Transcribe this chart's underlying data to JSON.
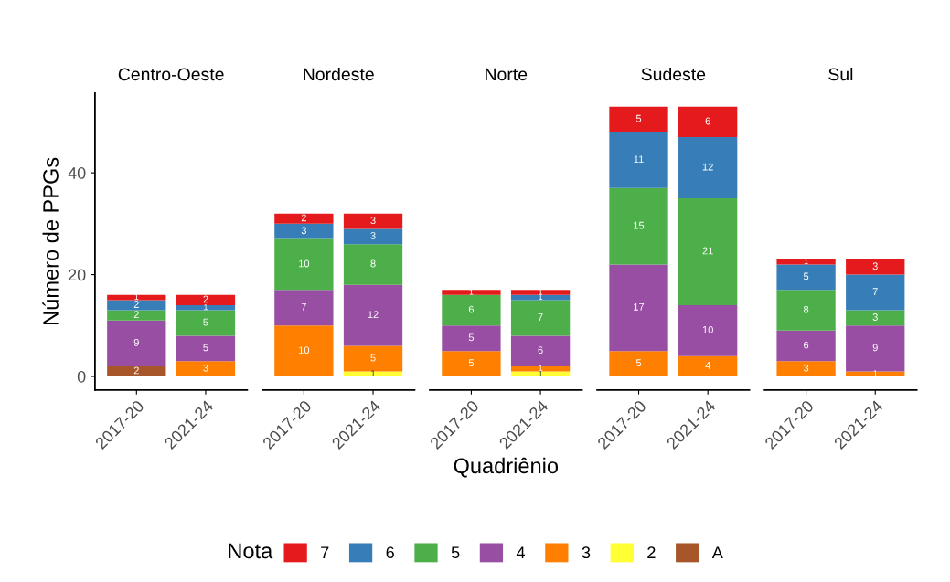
{
  "chart_data": [
    {
      "type": "bar",
      "stacked": true,
      "title": "Centro-Oeste",
      "ylabel": "Número de PPGs",
      "legend_title": "Nota",
      "legend": "bottom",
      "categories": [
        "2017-20",
        "2021-24"
      ],
      "ylim": [
        -2.65,
        55.65
      ],
      "yticks": [
        0,
        20,
        40
      ],
      "data_labels": true,
      "grid": false,
      "series": [
        {
          "name": "A",
          "color": "#a65628",
          "values": [
            2,
            null
          ]
        },
        {
          "name": "2",
          "color": "#ffff33",
          "values": [
            null,
            null
          ]
        },
        {
          "name": "3",
          "color": "#ff7f00",
          "values": [
            null,
            3
          ]
        },
        {
          "name": "4",
          "color": "#984ea3",
          "values": [
            9,
            5
          ]
        },
        {
          "name": "5",
          "color": "#4daf4a",
          "values": [
            2,
            5
          ]
        },
        {
          "name": "6",
          "color": "#377eb8",
          "values": [
            2,
            1
          ]
        },
        {
          "name": "7",
          "color": "#e41a1c",
          "values": [
            1,
            2
          ]
        }
      ]
    },
    {
      "type": "bar",
      "stacked": true,
      "title": "Nordeste",
      "categories": [
        "2017-20",
        "2021-24"
      ],
      "tick_labels": "x",
      "data_labels": true,
      "grid": false,
      "series": [
        {
          "color": "#a65628",
          "values": [
            null,
            null
          ]
        },
        {
          "color": "#ffff33",
          "values": [
            null,
            1
          ]
        },
        {
          "color": "#ff7f00",
          "values": [
            10,
            5
          ]
        },
        {
          "color": "#984ea3",
          "values": [
            7,
            12
          ]
        },
        {
          "color": "#4daf4a",
          "values": [
            10,
            8
          ]
        },
        {
          "color": "#377eb8",
          "values": [
            3,
            3
          ]
        },
        {
          "color": "#e41a1c",
          "values": [
            2,
            3
          ]
        }
      ]
    },
    {
      "type": "bar",
      "stacked": true,
      "title": "Norte",
      "xlabel": "Quadriênio",
      "categories": [
        "2017-20",
        "2021-24"
      ],
      "tick_labels": "x",
      "data_labels": true,
      "grid": false,
      "series": [
        {
          "color": "#a65628",
          "values": [
            null,
            null
          ]
        },
        {
          "color": "#ffff33",
          "values": [
            null,
            1
          ]
        },
        {
          "color": "#ff7f00",
          "values": [
            5,
            1
          ]
        },
        {
          "color": "#984ea3",
          "values": [
            5,
            6
          ]
        },
        {
          "color": "#4daf4a",
          "values": [
            6,
            7
          ]
        },
        {
          "color": "#377eb8",
          "values": [
            null,
            1
          ]
        },
        {
          "color": "#e41a1c",
          "values": [
            1,
            1
          ]
        }
      ]
    },
    {
      "type": "bar",
      "stacked": true,
      "title": "Sudeste",
      "categories": [
        "2017-20",
        "2021-24"
      ],
      "tick_labels": "x",
      "data_labels": true,
      "grid": false,
      "series": [
        {
          "color": "#a65628",
          "values": [
            null,
            null
          ]
        },
        {
          "color": "#ffff33",
          "values": [
            null,
            null
          ]
        },
        {
          "color": "#ff7f00",
          "values": [
            5,
            4
          ]
        },
        {
          "color": "#984ea3",
          "values": [
            17,
            10
          ]
        },
        {
          "color": "#4daf4a",
          "values": [
            15,
            21
          ]
        },
        {
          "color": "#377eb8",
          "values": [
            11,
            12
          ]
        },
        {
          "color": "#e41a1c",
          "values": [
            5,
            6
          ]
        }
      ]
    },
    {
      "type": "bar",
      "stacked": true,
      "title": "Sul",
      "categories": [
        "2017-20",
        "2021-24"
      ],
      "tick_labels": "x",
      "data_labels": true,
      "grid": false,
      "series": [
        {
          "color": "#a65628",
          "values": [
            null,
            null
          ]
        },
        {
          "color": "#ffff33",
          "values": [
            null,
            null
          ]
        },
        {
          "color": "#ff7f00",
          "values": [
            3,
            1
          ]
        },
        {
          "color": "#984ea3",
          "values": [
            6,
            9
          ]
        },
        {
          "color": "#4daf4a",
          "values": [
            8,
            3
          ]
        },
        {
          "color": "#377eb8",
          "values": [
            5,
            7
          ]
        },
        {
          "color": "#e41a1c",
          "values": [
            1,
            3
          ]
        }
      ]
    }
  ]
}
